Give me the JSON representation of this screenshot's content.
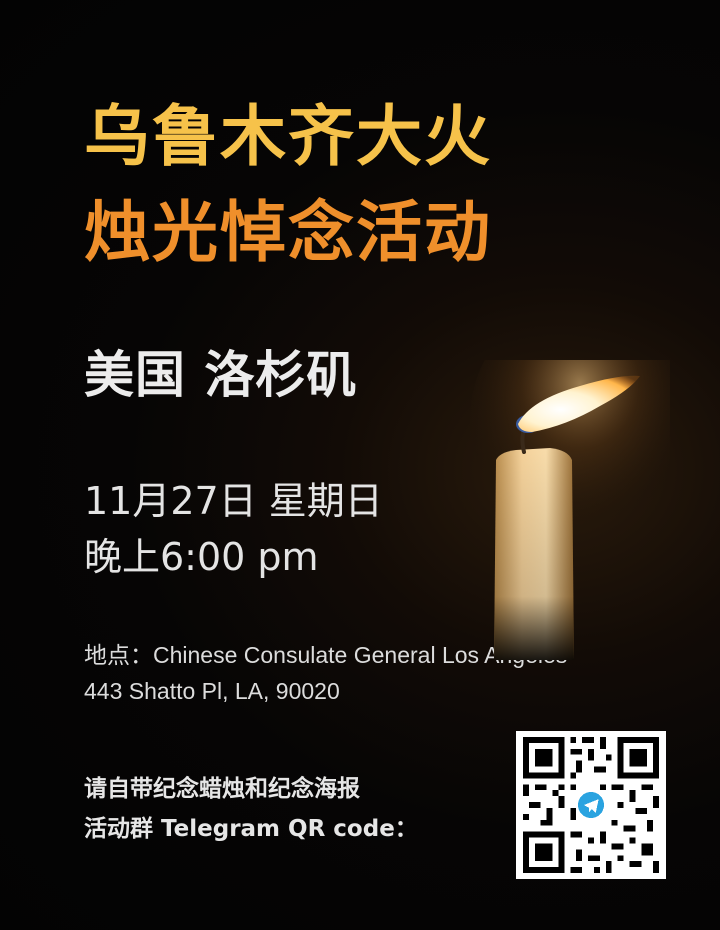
{
  "title": {
    "line1": "乌鲁木齐大火",
    "line2": "烛光悼念活动"
  },
  "location_heading": "美国 洛杉矶",
  "datetime": {
    "date": "11月27日 星期日",
    "time": "晚上6:00 pm"
  },
  "address": {
    "line1": "地点：Chinese Consulate General Los Angeles",
    "line2": "443 Shatto Pl, LA, 90020"
  },
  "notes": {
    "line1": "请自带纪念蜡烛和纪念海报",
    "line2": "活动群 Telegram QR code："
  },
  "colors": {
    "title_line1": "#f6c24a",
    "title_line2": "#ef8f2b",
    "background": "#050505",
    "telegram_blue": "#2aa3e0"
  },
  "icons": {
    "candle": "candle-illustration",
    "qr": "qr-code",
    "qr_center": "telegram-icon"
  }
}
